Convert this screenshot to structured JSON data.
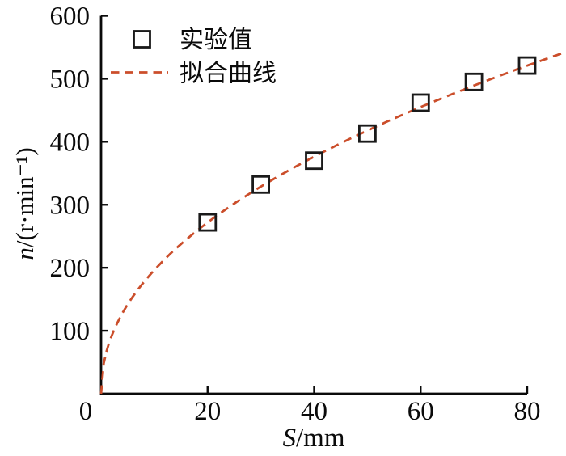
{
  "figure": {
    "background": "#ffffff",
    "text_color": "#0a0a0a"
  },
  "chart_data": {
    "type": "scatter",
    "title": "",
    "xlabel": "S/mm",
    "xlabel_var": "S",
    "xlabel_unit": "/mm",
    "ylabel": "n/(r·min⁻¹)",
    "ylabel_var": "n",
    "ylabel_unit": "/(r·min⁻¹)",
    "xlim": [
      0,
      80
    ],
    "ylim": [
      0,
      600
    ],
    "x_ticks": [
      0,
      20,
      40,
      60,
      80
    ],
    "y_ticks": [
      100,
      200,
      300,
      400,
      500,
      600
    ],
    "grid": false,
    "legend_position": "top-left-inside",
    "series": [
      {
        "name": "实验值",
        "type": "scatter",
        "marker": "open-square",
        "color": "#1a1a1a",
        "x": [
          20,
          30,
          40,
          50,
          60,
          70,
          80
        ],
        "y": [
          272,
          332,
          370,
          413,
          462,
          495,
          521
        ]
      },
      {
        "name": "拟合曲线",
        "type": "line",
        "line_style": "dashed",
        "color": "#CB4E2B",
        "fit_model": "power n = a·S^b",
        "a": 66.7,
        "b": 0.469,
        "x_start": 0,
        "x_end": 87
      }
    ]
  }
}
